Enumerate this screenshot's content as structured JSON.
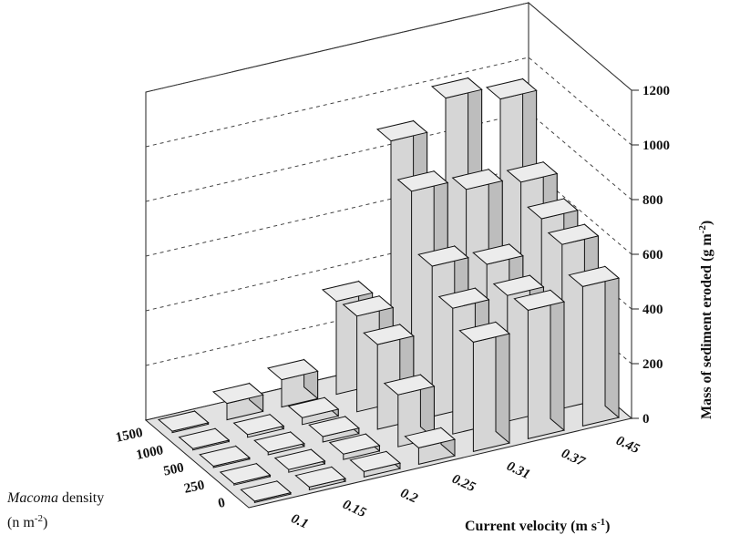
{
  "chart_data": {
    "type": "bar3d",
    "title": "",
    "x_axis": {
      "label": "Current velocity (m s",
      "label_sup": "-1",
      "label_end": ")",
      "categories": [
        "0.1",
        "0.15",
        "0.2",
        "0.25",
        "0.31",
        "0.37",
        "0.45"
      ]
    },
    "depth_axis": {
      "label_italic": "Macoma",
      "label_rest": " density",
      "unit_pre": "(n m",
      "unit_sup": "-2",
      "unit_end": ")",
      "categories": [
        "0",
        "250",
        "500",
        "1000",
        "1500"
      ]
    },
    "z_axis": {
      "label": "Mass of sediment eroded (g m",
      "label_sup": "-2",
      "label_end": ")",
      "range": [
        0,
        1200
      ],
      "ticks": [
        "0",
        "200",
        "400",
        "600",
        "800",
        "1000",
        "1200"
      ]
    },
    "grid": "dashed",
    "values": [
      [
        5,
        10,
        20,
        60,
        400,
        470,
        510
      ],
      [
        5,
        10,
        20,
        190,
        460,
        460,
        600
      ],
      [
        5,
        10,
        20,
        310,
        550,
        510,
        630
      ],
      [
        5,
        10,
        25,
        350,
        760,
        720,
        700
      ],
      [
        5,
        60,
        100,
        340,
        880,
        990,
        940
      ]
    ],
    "colors": {
      "bar_front": "#d6d6d6",
      "bar_side": "#bdbdbd",
      "bar_top": "#ececec",
      "floor": "#e2e2e2"
    }
  }
}
